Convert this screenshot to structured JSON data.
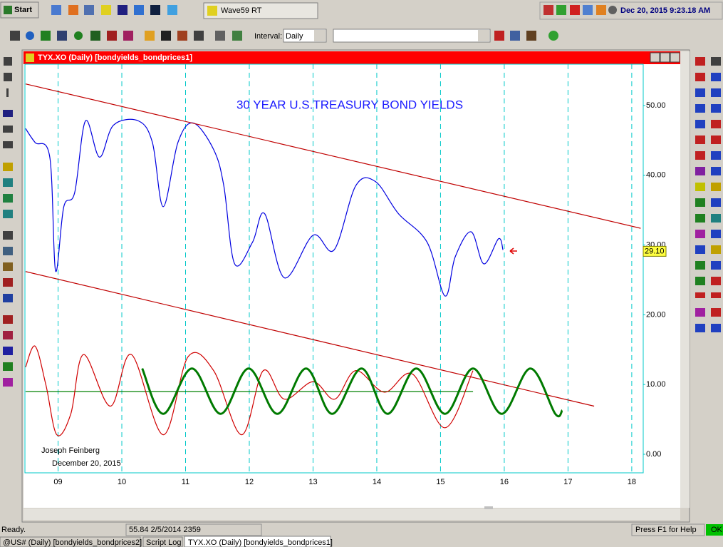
{
  "taskbar": {
    "start": "Start",
    "app": "Wave59 RT",
    "clock": "Dec 20, 2015  9:23.18 AM"
  },
  "toolbar": {
    "interval_label": "Interval:",
    "interval": "Daily"
  },
  "window": {
    "title": "TYX.XO (Daily) [bondyields_bondprices1]"
  },
  "status": {
    "ready": "Ready.",
    "cursor": "55.84  2/5/2014  2359",
    "help": "Press F1 for Help",
    "ok": "OK"
  },
  "tabs": [
    "@US# (Daily) [bondyields_bondprices2]",
    "Script Log",
    "TYX.XO (Daily) [bondyields_bondprices1]"
  ],
  "chart_data": {
    "type": "line",
    "title": "30 YEAR U.S.TREASURY BOND YIELDS",
    "annotations": [
      "Joseph Feinberg",
      "December 20, 2015"
    ],
    "xlim": [
      8.48,
      18.18
    ],
    "xticks": [
      {
        "value": 9,
        "label": "09"
      },
      10,
      11,
      12,
      13,
      14,
      15,
      16,
      17,
      18
    ],
    "ylim": [
      -2.66,
      55.93
    ],
    "yticks": [
      {
        "value": 0,
        "label": "0.00"
      },
      {
        "value": 10,
        "label": "10.00"
      },
      {
        "value": 20,
        "label": "20.00"
      },
      {
        "value": 30,
        "label": "30.00"
      },
      {
        "value": 40,
        "label": "40.00"
      },
      {
        "value": 50,
        "label": "50.00"
      }
    ],
    "grid": true,
    "last_price": {
      "value": 29.1,
      "label": "29.10"
    },
    "series": [
      {
        "color": "#0000e0",
        "x": [
          8.49,
          8.64,
          8.87,
          8.96,
          9.09,
          9.26,
          9.43,
          9.65,
          9.87,
          10.26,
          10.48,
          10.65,
          10.88,
          11.12,
          11.44,
          11.6,
          11.77,
          12.05,
          12.24,
          12.55,
          13.0,
          13.33,
          13.67,
          13.98,
          14.34,
          14.79,
          15.07,
          15.23,
          15.48,
          15.68,
          15.91,
          15.98
        ],
        "values": [
          46.7,
          44.7,
          42.6,
          26.3,
          35.5,
          37.5,
          47.8,
          42.6,
          47.2,
          47.8,
          44.7,
          35.5,
          44.7,
          47.5,
          43.7,
          38.5,
          27.3,
          30.4,
          34.5,
          25.3,
          31.4,
          29.3,
          38.5,
          39.1,
          34.5,
          30.4,
          22.7,
          28.3,
          31.9,
          27.3,
          30.9,
          29.3
        ]
      },
      {
        "color": "#c00000",
        "x": [
          8.49,
          18.14
        ],
        "values": [
          53.1,
          32.4
        ]
      },
      {
        "color": "#c00000",
        "x": [
          8.49,
          17.41
        ],
        "values": [
          26.2,
          6.9
        ]
      },
      {
        "color": "#008000",
        "x": [
          8.49,
          15.51
        ],
        "values": [
          9.0,
          9.0
        ]
      },
      {
        "color": "#d00000",
        "x": [
          8.49,
          8.64,
          8.81,
          8.98,
          9.2,
          9.4,
          9.82,
          10.15,
          10.65,
          11.04,
          11.44,
          11.88,
          12.22,
          12.55,
          13.0,
          13.34,
          13.67,
          14.12,
          14.56,
          15.07,
          15.51
        ],
        "values": [
          12.5,
          15.5,
          9.9,
          2.8,
          5.8,
          14.3,
          6.9,
          14.3,
          2.8,
          14.0,
          12.0,
          2.8,
          12.0,
          7.9,
          10.4,
          7.9,
          12.0,
          8.9,
          11.5,
          3.8,
          12.0
        ]
      },
      {
        "color": "#007a00",
        "x": [
          10.32,
          10.65,
          11.1,
          11.55,
          11.99,
          12.44,
          12.89,
          13.3,
          13.76,
          14.17,
          14.62,
          15.07,
          15.51,
          15.96,
          16.41,
          16.8,
          16.91
        ],
        "values": [
          12.3,
          5.8,
          12.3,
          5.8,
          12.3,
          5.8,
          12.3,
          5.8,
          12.3,
          5.8,
          12.3,
          5.8,
          12.3,
          5.8,
          12.3,
          5.8,
          6.3
        ]
      }
    ]
  }
}
